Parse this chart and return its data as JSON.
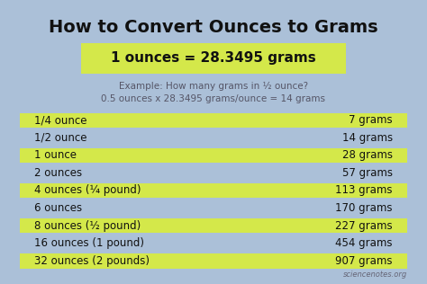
{
  "title": "How to Convert Ounces to Grams",
  "formula": "1 ounces = 28.3495 grams",
  "example_line1": "Example: How many grams in ½ ounce?",
  "example_line2": "0.5 ounces x 28.3495 grams/ounce = 14 grams",
  "table_rows": [
    [
      "1/4 ounce",
      "7 grams"
    ],
    [
      "1/2 ounce",
      "14 grams"
    ],
    [
      "1 ounce",
      "28 grams"
    ],
    [
      "2 ounces",
      "57 grams"
    ],
    [
      "4 ounces (¼ pound)",
      "113 grams"
    ],
    [
      "6 ounces",
      "170 grams"
    ],
    [
      "8 ounces (½ pound)",
      "227 grams"
    ],
    [
      "16 ounces (1 pound)",
      "454 grams"
    ],
    [
      "32 ounces (2 pounds)",
      "907 grams"
    ]
  ],
  "highlighted_rows": [
    0,
    2,
    4,
    6,
    8
  ],
  "bg_color": "#abc0d8",
  "highlight_color": "#d4e84a",
  "formula_bg": "#d4e84a",
  "title_color": "#111111",
  "text_color": "#111111",
  "example_color": "#555566",
  "watermark": "sciencenotes.org"
}
